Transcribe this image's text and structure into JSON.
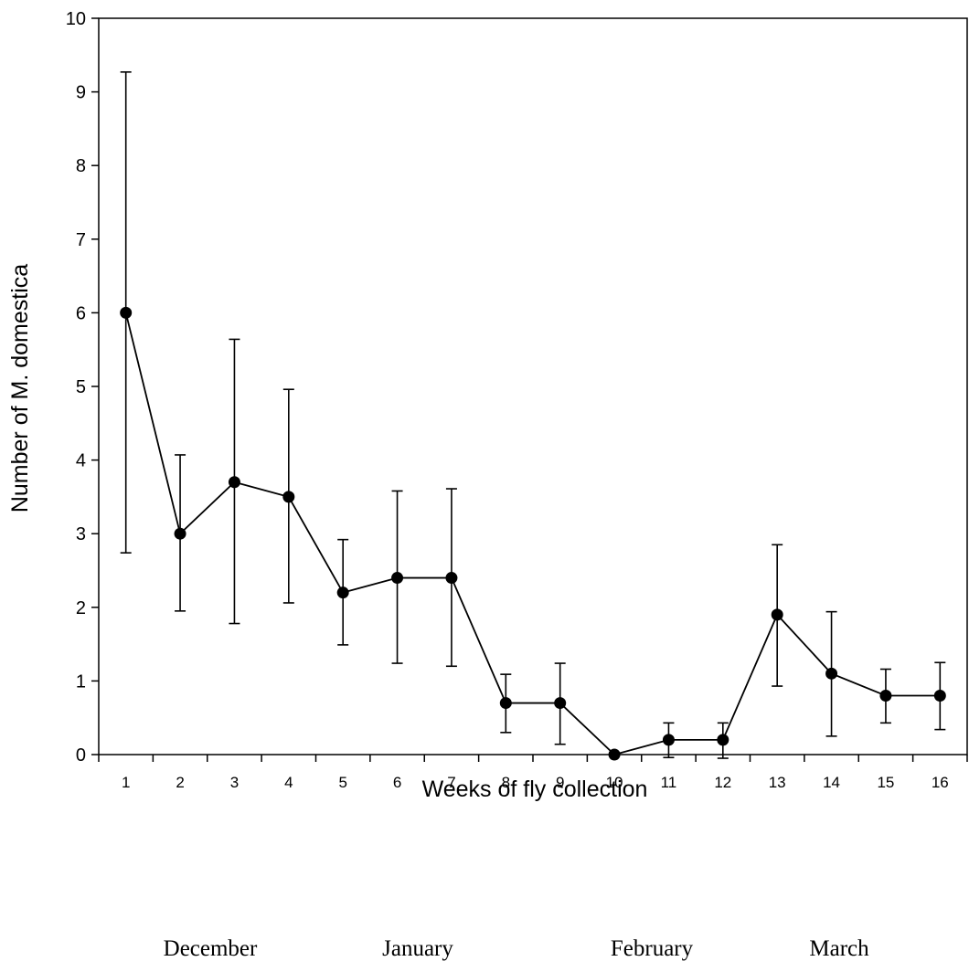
{
  "chart_data": {
    "type": "line",
    "title": "",
    "xlabel": "Weeks of fly collection",
    "ylabel": "Number of M. domestica",
    "x": [
      1,
      2,
      3,
      4,
      5,
      6,
      7,
      8,
      9,
      10,
      11,
      12,
      13,
      14,
      15,
      16
    ],
    "series": [
      {
        "values": [
          6.0,
          3.0,
          3.7,
          3.5,
          2.2,
          2.4,
          2.4,
          0.7,
          0.7,
          0.0,
          0.2,
          0.2,
          1.9,
          1.1,
          0.8,
          0.8
        ],
        "error_upper": [
          9.27,
          4.07,
          5.64,
          4.96,
          2.92,
          3.58,
          3.61,
          1.09,
          1.24,
          0.0,
          0.43,
          0.43,
          2.85,
          1.94,
          1.16,
          1.25
        ],
        "error_lower": [
          2.74,
          1.95,
          1.78,
          2.06,
          1.49,
          1.24,
          1.2,
          0.3,
          0.14,
          0.0,
          -0.04,
          -0.05,
          0.93,
          0.25,
          0.43,
          0.34
        ],
        "color": "#000000"
      }
    ],
    "ylim": [
      0,
      10
    ],
    "yticks": [
      0,
      1,
      2,
      3,
      4,
      5,
      6,
      7,
      8,
      9,
      10
    ],
    "xticks": [
      "1",
      "2",
      "3",
      "4",
      "5",
      "6",
      "7",
      "8",
      "9",
      "10",
      "11",
      "12",
      "13",
      "14",
      "15",
      "16"
    ],
    "grid": false,
    "legend": "none"
  },
  "months": [
    "December",
    "January",
    "February",
    "March"
  ]
}
